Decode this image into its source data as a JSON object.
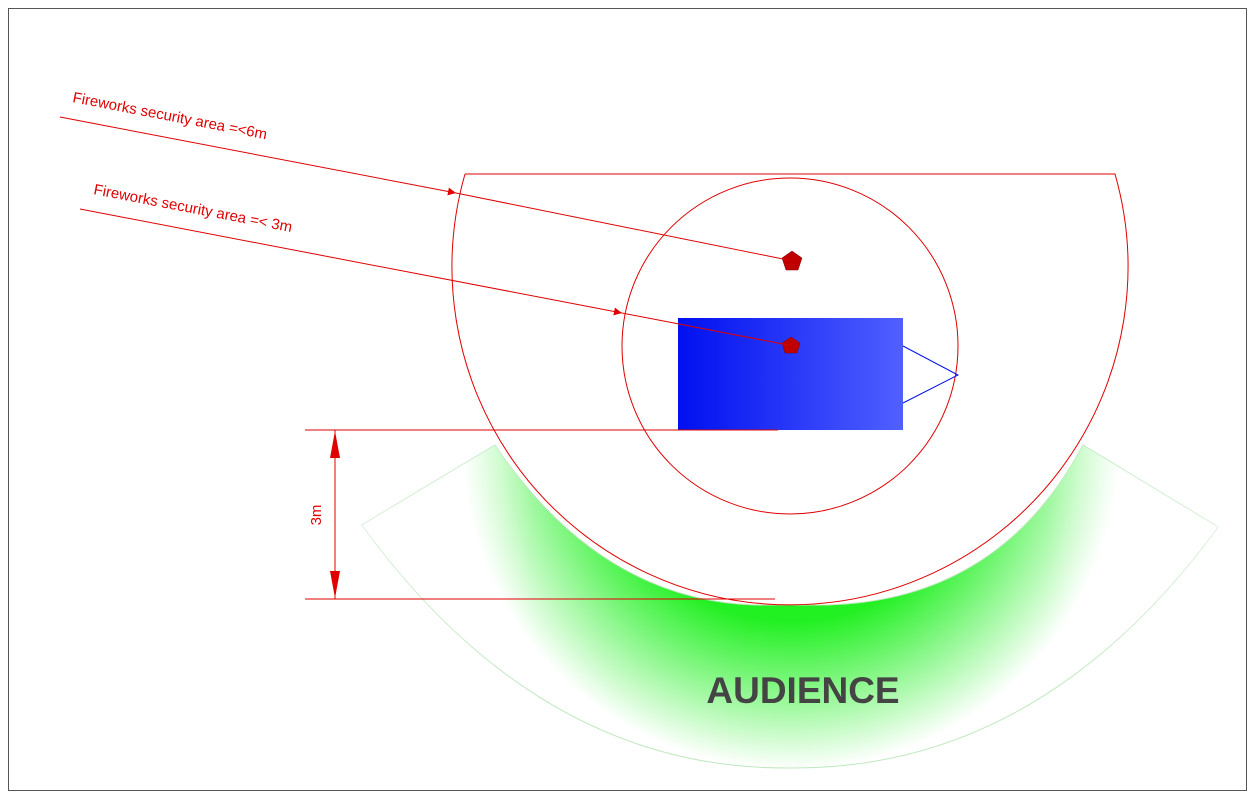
{
  "labels": {
    "outer_area": "Fireworks security area =<6m",
    "inner_area": "Fireworks security area =< 3m",
    "dimension": "3m",
    "audience": "AUDIENCE"
  },
  "colors": {
    "line": "#e00000",
    "stage_dark": "#0010f0",
    "stage_light": "#5060ff",
    "audience": "#11f011",
    "audience_text": "#444444",
    "marker": "#c00000",
    "frame": "#555555"
  },
  "icons": {
    "launch_point": "pentagon-marker-icon"
  }
}
